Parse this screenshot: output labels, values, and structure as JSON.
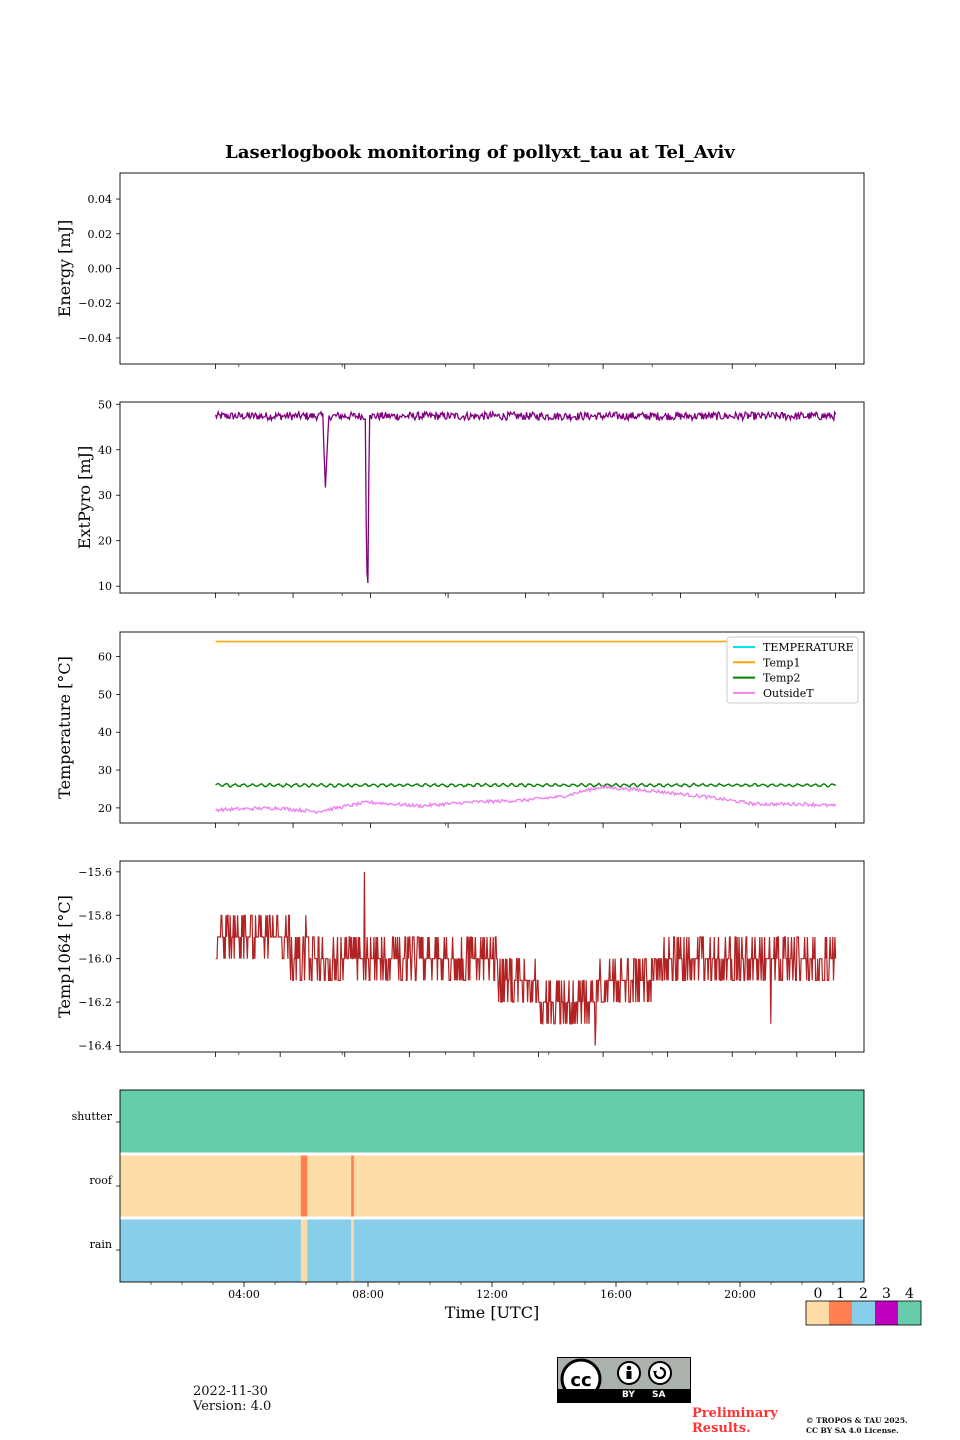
{
  "figure": {
    "title": "Laserlogbook monitoring of pollyxt_tau at Tel_Aviv",
    "date_text": "2022-11-30",
    "version_text": "Version: 4.0",
    "preliminary_line1": "Preliminary",
    "preliminary_line2": "Results.",
    "copyright_line1": "© TROPOS & TAU 2025.",
    "copyright_line2": "CC BY SA 4.0 License.",
    "license_badge": {
      "left": "BY",
      "right": "SA",
      "icons": [
        "cc-icon",
        "attribution-person-icon",
        "share-alike-icon"
      ]
    }
  },
  "chart_data": [
    {
      "type": "line",
      "id": "energy",
      "ylabel": "Energy [mJ]",
      "ylim": [
        -0.055,
        0.055
      ],
      "yticks": [
        -0.04,
        -0.02,
        0.0,
        0.02,
        0.04
      ],
      "ytick_labels": [
        "−0.04",
        "−0.02",
        "0.00",
        "0.02",
        "0.04"
      ],
      "x_hours_range": [
        0.0,
        24.0
      ],
      "series": []
    },
    {
      "type": "line",
      "id": "extpyro",
      "ylabel": "ExtPyro [mJ]",
      "ylim": [
        8.5,
        50.5
      ],
      "yticks": [
        10,
        20,
        30,
        40,
        50
      ],
      "ytick_labels": [
        "10",
        "20",
        "30",
        "40",
        "50"
      ],
      "x_hours_range": [
        0.0,
        24.0
      ],
      "series": [
        {
          "color": "#800080",
          "baseline": 47.5,
          "noise_low": 46.5,
          "noise_high": 48.3,
          "x": [
            1.1,
            5.25,
            5.35,
            5.48,
            5.52,
            6.9,
            6.94,
            7.0,
            7.05,
            7.1,
            25.1
          ],
          "y": [
            47.5,
            47.5,
            31.5,
            47.5,
            47.5,
            47.5,
            14.5,
            10.5,
            47.5,
            47.5,
            47.0
          ]
        }
      ]
    },
    {
      "type": "line",
      "id": "temperature",
      "ylabel": "Temperature [°C]",
      "ylim": [
        16.0,
        66.5
      ],
      "yticks": [
        20,
        30,
        40,
        50,
        60
      ],
      "ytick_labels": [
        "20",
        "30",
        "40",
        "50",
        "60"
      ],
      "x_hours_range": [
        0.0,
        24.0
      ],
      "legend_position": "upper right",
      "series": [
        {
          "name": "TEMPERATURE",
          "color": "#00e5e5",
          "x": [],
          "y": []
        },
        {
          "name": "Temp1",
          "color": "#ffa500",
          "x": [
            1.1,
            25.1
          ],
          "y": [
            64.0,
            64.0
          ]
        },
        {
          "name": "Temp2",
          "color": "#008000",
          "x": [
            1.1,
            25.1
          ],
          "y": [
            26.0,
            26.0
          ],
          "wiggle": 0.35
        },
        {
          "name": "OutsideT",
          "color": "#ee82ee",
          "x": [
            1.1,
            3.5,
            5.0,
            7.0,
            9.0,
            11.0,
            13.0,
            14.5,
            16.0,
            18.0,
            20.0,
            22.0,
            24.0,
            25.1
          ],
          "y": [
            19.5,
            20.0,
            19.0,
            21.5,
            20.5,
            21.5,
            22.0,
            23.0,
            25.5,
            24.5,
            23.0,
            21.0,
            21.0,
            20.5
          ]
        }
      ]
    },
    {
      "type": "line",
      "id": "temp1064",
      "ylabel": "Temp1064 [°C]",
      "ylim": [
        -16.43,
        -15.55
      ],
      "yticks": [
        -16.4,
        -16.2,
        -16.0,
        -15.8,
        -15.6
      ],
      "ytick_labels": [
        "−16.4",
        "−16.2",
        "−16.0",
        "−15.8",
        "−15.6"
      ],
      "x_hours_range": [
        0.0,
        24.0
      ],
      "series": [
        {
          "color": "#b22222",
          "envelope_x": [
            1.1,
            4.0,
            8.0,
            10.0,
            12.0,
            13.5,
            14.0,
            15.5,
            16.0,
            18.0,
            20.0,
            25.1
          ],
          "envelope_level": [
            -15.95,
            -15.95,
            -16.0,
            -16.0,
            -16.05,
            -16.15,
            -16.25,
            -16.25,
            -16.1,
            -16.05,
            -16.0,
            -15.95
          ],
          "spikes": [
            [
              6.85,
              -15.6
            ],
            [
              4.6,
              -15.8
            ],
            [
              15.8,
              -16.4
            ],
            [
              22.6,
              -16.3
            ]
          ]
        }
      ]
    },
    {
      "type": "heatmap",
      "id": "status",
      "categories": [
        "shutter",
        "roof",
        "rain"
      ],
      "x_hours_range": [
        0.0,
        24.0
      ],
      "xlabel": "Time [UTC]",
      "xtick_hours": [
        4,
        8,
        12,
        16,
        20
      ],
      "xtick_labels": [
        "04:00",
        "08:00",
        "12:00",
        "16:00",
        "20:00"
      ],
      "colorbar": {
        "values": [
          0,
          1,
          2,
          3,
          4
        ],
        "labels": [
          "0",
          "1",
          "2",
          "3",
          "4"
        ],
        "colors": [
          "#fddca8",
          "#ff7f50",
          "#87ceeb",
          "#c000c0",
          "#66cdaa"
        ]
      },
      "rows": [
        {
          "name": "shutter",
          "default": 4,
          "segments": []
        },
        {
          "name": "roof",
          "default": 0,
          "segments": [
            [
              4.4,
              4.65,
              1
            ],
            [
              6.35,
              6.45,
              1
            ]
          ]
        },
        {
          "name": "rain",
          "default": 2,
          "segments": [
            [
              4.4,
              4.65,
              0
            ],
            [
              6.35,
              6.45,
              0
            ]
          ]
        }
      ]
    }
  ]
}
